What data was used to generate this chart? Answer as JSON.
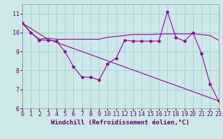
{
  "background_color": "#cce8e8",
  "line_color": "#990099",
  "grid_color": "#aacccc",
  "xlabel": "Windchill (Refroidissement éolien,°C)",
  "xlabel_fontsize": 6.5,
  "tick_fontsize": 6.0,
  "xlim": [
    0,
    23
  ],
  "ylim": [
    6,
    11.5
  ],
  "yticks": [
    6,
    7,
    8,
    9,
    10,
    11
  ],
  "xticks": [
    0,
    1,
    2,
    3,
    4,
    5,
    6,
    7,
    8,
    9,
    10,
    11,
    12,
    13,
    14,
    15,
    16,
    17,
    18,
    19,
    20,
    21,
    22,
    23
  ],
  "line1_x": [
    0,
    1,
    2,
    3,
    4,
    5,
    6,
    7,
    8,
    9,
    10,
    11,
    12,
    13,
    14,
    15,
    16,
    17,
    18,
    19,
    20,
    21,
    22,
    23
  ],
  "line1_y": [
    10.5,
    10.0,
    9.6,
    9.6,
    9.55,
    9.0,
    8.2,
    7.65,
    7.65,
    7.5,
    8.35,
    8.65,
    9.6,
    9.55,
    9.55,
    9.55,
    9.55,
    11.1,
    9.75,
    9.55,
    10.0,
    8.9,
    7.3,
    6.4
  ],
  "line2_x": [
    0,
    1,
    2,
    3,
    4,
    5,
    6,
    7,
    8,
    9,
    10,
    11,
    12,
    13,
    14,
    15,
    16,
    17,
    18,
    19,
    20,
    21,
    22,
    23
  ],
  "line2_y": [
    10.5,
    10.0,
    9.65,
    9.7,
    9.65,
    9.65,
    9.65,
    9.65,
    9.65,
    9.65,
    9.75,
    9.8,
    9.85,
    9.9,
    9.9,
    9.9,
    9.92,
    9.93,
    9.93,
    9.93,
    9.94,
    9.9,
    9.85,
    9.6
  ],
  "line3_x": [
    0,
    3,
    23
  ],
  "line3_y": [
    10.5,
    9.65,
    6.4
  ]
}
